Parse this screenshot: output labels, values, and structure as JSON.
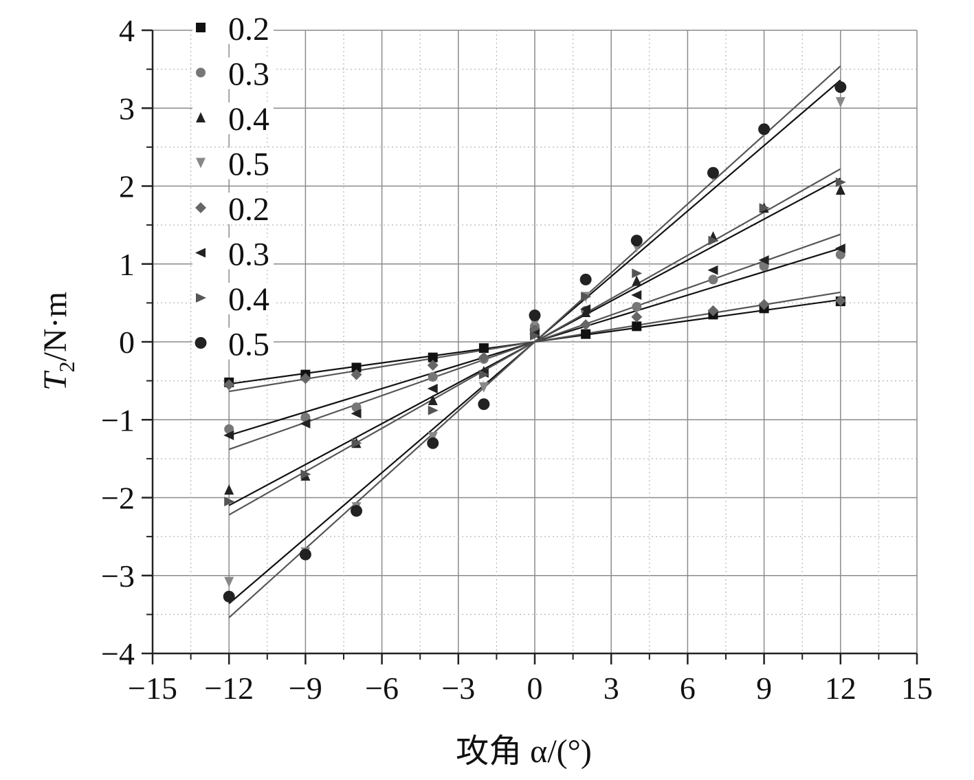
{
  "chart_data": {
    "type": "scatter",
    "title": "",
    "xlabel": "攻角 α/(°)",
    "ylabel_main": "T",
    "ylabel_sub": "2",
    "ylabel_rest": "/N·m",
    "xlim": [
      -15,
      15
    ],
    "ylim": [
      -4,
      4
    ],
    "xticks": [
      -15,
      -12,
      -9,
      -6,
      -3,
      0,
      3,
      6,
      9,
      12,
      15
    ],
    "xtick_labels": [
      "−15",
      "−12",
      "−9",
      "−6",
      "−3",
      "0",
      "3",
      "6",
      "9",
      "12",
      "15"
    ],
    "yticks": [
      -4,
      -3,
      -2,
      -1,
      0,
      1,
      2,
      3,
      4
    ],
    "ytick_labels": [
      "−4",
      "−3",
      "−2",
      "−1",
      "0",
      "1",
      "2",
      "3",
      "4"
    ],
    "grid": true,
    "legend_position": "top-left",
    "series": [
      {
        "name": "0.2",
        "marker": "square",
        "color": "#111111",
        "slope": 0.045,
        "points": [
          [
            -12,
            -0.52
          ],
          [
            -9,
            -0.42
          ],
          [
            -7,
            -0.33
          ],
          [
            -4,
            -0.2
          ],
          [
            -2,
            -0.08
          ],
          [
            0,
            0.12
          ],
          [
            2,
            0.1
          ],
          [
            4,
            0.2
          ],
          [
            7,
            0.35
          ],
          [
            9,
            0.43
          ],
          [
            12,
            0.52
          ]
        ]
      },
      {
        "name": "0.3",
        "marker": "circle",
        "color": "#777777",
        "slope": 0.1,
        "points": [
          [
            -12,
            -1.12
          ],
          [
            -9,
            -0.97
          ],
          [
            -7,
            -0.84
          ],
          [
            -4,
            -0.45
          ],
          [
            -2,
            -0.22
          ],
          [
            0,
            0.2
          ],
          [
            2,
            0.4
          ],
          [
            4,
            0.45
          ],
          [
            7,
            0.8
          ],
          [
            9,
            0.97
          ],
          [
            12,
            1.12
          ]
        ]
      },
      {
        "name": "0.4",
        "marker": "triangle-up",
        "color": "#222222",
        "slope": 0.18,
        "points": [
          [
            -12,
            -1.9
          ],
          [
            -9,
            -1.72
          ],
          [
            -7,
            -1.3
          ],
          [
            -4,
            -0.75
          ],
          [
            -2,
            -0.38
          ],
          [
            0,
            0.18
          ],
          [
            2,
            0.38
          ],
          [
            4,
            0.78
          ],
          [
            7,
            1.35
          ],
          [
            9,
            1.72
          ],
          [
            12,
            1.95
          ]
        ]
      },
      {
        "name": "0.5",
        "marker": "triangle-down",
        "color": "#888888",
        "slope": 0.295,
        "points": [
          [
            -12,
            -3.08
          ],
          [
            -9,
            -2.7
          ],
          [
            -7,
            -2.12
          ],
          [
            -4,
            -1.22
          ],
          [
            -2,
            -0.58
          ],
          [
            0,
            0.24
          ],
          [
            2,
            0.58
          ],
          [
            4,
            1.22
          ],
          [
            7,
            2.12
          ],
          [
            9,
            2.7
          ],
          [
            12,
            3.08
          ]
        ]
      },
      {
        "name": "0.2",
        "marker": "diamond",
        "color": "#666666",
        "slope": 0.053,
        "points": [
          [
            -12,
            -0.55
          ],
          [
            -9,
            -0.47
          ],
          [
            -7,
            -0.42
          ],
          [
            -4,
            -0.3
          ],
          [
            -2,
            -0.2
          ],
          [
            0,
            0.15
          ],
          [
            2,
            0.22
          ],
          [
            4,
            0.32
          ],
          [
            7,
            0.4
          ],
          [
            9,
            0.48
          ],
          [
            12,
            0.53
          ]
        ]
      },
      {
        "name": "0.3",
        "marker": "triangle-left",
        "color": "#222222",
        "slope": 0.115,
        "points": [
          [
            -12,
            -1.2
          ],
          [
            -9,
            -1.05
          ],
          [
            -7,
            -0.92
          ],
          [
            -4,
            -0.6
          ],
          [
            -2,
            -0.4
          ],
          [
            0,
            0.1
          ],
          [
            2,
            0.42
          ],
          [
            4,
            0.6
          ],
          [
            7,
            0.92
          ],
          [
            9,
            1.05
          ],
          [
            12,
            1.2
          ]
        ]
      },
      {
        "name": "0.4",
        "marker": "triangle-right",
        "color": "#555555",
        "slope": 0.185,
        "points": [
          [
            -12,
            -2.05
          ],
          [
            -9,
            -1.7
          ],
          [
            -7,
            -1.3
          ],
          [
            -4,
            -0.88
          ],
          [
            -2,
            -0.42
          ],
          [
            0,
            0.08
          ],
          [
            2,
            0.58
          ],
          [
            4,
            0.88
          ],
          [
            7,
            1.3
          ],
          [
            9,
            1.72
          ],
          [
            12,
            2.05
          ]
        ]
      },
      {
        "name": "0.5",
        "marker": "circle-large",
        "color": "#222222",
        "slope": 0.285,
        "points": [
          [
            -12,
            -3.27
          ],
          [
            -9,
            -2.73
          ],
          [
            -7,
            -2.17
          ],
          [
            -4,
            -1.3
          ],
          [
            -2,
            -0.8
          ],
          [
            0,
            0.34
          ],
          [
            2,
            0.8
          ],
          [
            4,
            1.3
          ],
          [
            7,
            2.17
          ],
          [
            9,
            2.73
          ],
          [
            12,
            3.27
          ]
        ]
      }
    ],
    "fit_lines": [
      {
        "slope": 0.045,
        "color": "#111111"
      },
      {
        "slope": 0.053,
        "color": "#555555"
      },
      {
        "slope": 0.1,
        "color": "#111111"
      },
      {
        "slope": 0.115,
        "color": "#555555"
      },
      {
        "slope": 0.175,
        "color": "#111111"
      },
      {
        "slope": 0.185,
        "color": "#555555"
      },
      {
        "slope": 0.28,
        "color": "#111111"
      },
      {
        "slope": 0.295,
        "color": "#555555"
      }
    ]
  }
}
